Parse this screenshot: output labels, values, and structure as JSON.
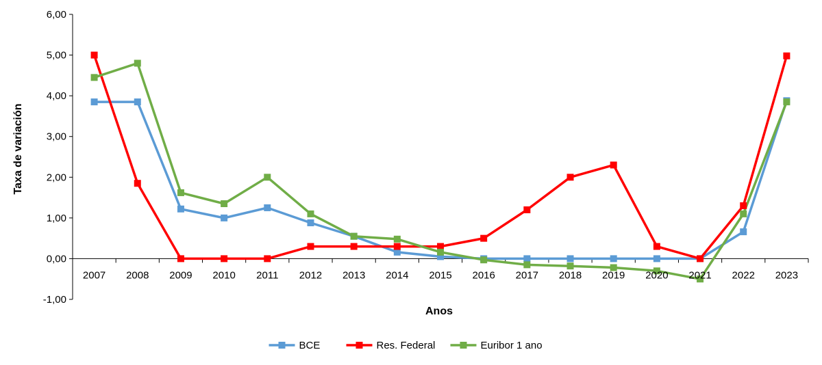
{
  "chart_data": {
    "type": "line",
    "title": "",
    "xlabel": "Anos",
    "ylabel": "Taxa de variación",
    "ylim": [
      -1,
      6
    ],
    "ytick_step": 1,
    "ytick_labels": [
      "-1,00",
      "0,00",
      "1,00",
      "2,00",
      "3,00",
      "4,00",
      "5,00",
      "6,00"
    ],
    "categories": [
      "2007",
      "2008",
      "2009",
      "2010",
      "2011",
      "2012",
      "2013",
      "2014",
      "2015",
      "2016",
      "2017",
      "2018",
      "2019",
      "2020",
      "2021",
      "2022",
      "2023"
    ],
    "legend_position": "bottom",
    "series": [
      {
        "name": "BCE",
        "color": "#5B9BD5",
        "values": [
          3.85,
          3.85,
          1.22,
          1.0,
          1.25,
          0.88,
          0.55,
          0.16,
          0.05,
          0.0,
          0.0,
          0.0,
          0.0,
          0.0,
          0.0,
          0.66,
          3.88
        ]
      },
      {
        "name": "Res. Federal",
        "color": "#FF0000",
        "values": [
          5.0,
          1.85,
          0.0,
          0.0,
          0.0,
          0.3,
          0.3,
          0.3,
          0.3,
          0.5,
          1.2,
          2.0,
          2.3,
          0.3,
          0.0,
          1.3,
          4.98
        ]
      },
      {
        "name": "Euribor 1 ano",
        "color": "#70AD47",
        "values": [
          4.45,
          4.8,
          1.62,
          1.35,
          2.0,
          1.1,
          0.55,
          0.48,
          0.16,
          -0.03,
          -0.15,
          -0.18,
          -0.22,
          -0.3,
          -0.5,
          1.1,
          3.85
        ]
      }
    ]
  }
}
